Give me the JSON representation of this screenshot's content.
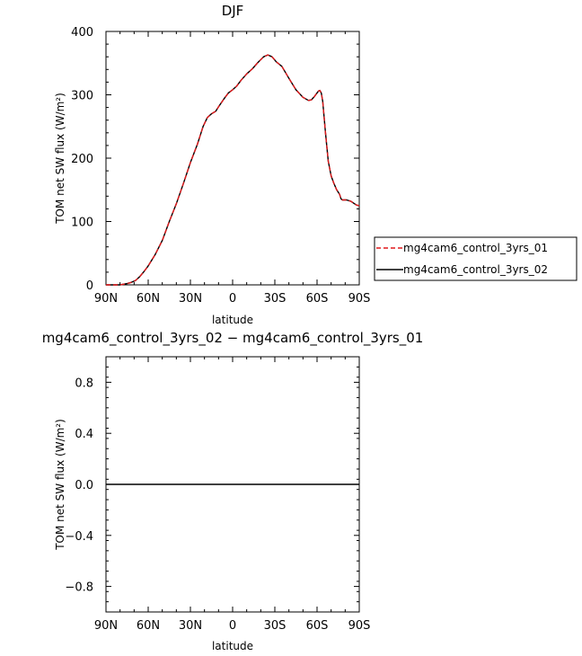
{
  "colors": {
    "series_01": "#e0191b",
    "series_02": "#000000",
    "axis": "#000000"
  },
  "chart_data": [
    {
      "type": "line",
      "title": "DJF",
      "xlabel": "latitude",
      "ylabel": "TOM net SW flux (W/m²)",
      "xlim": [
        90,
        -90
      ],
      "ylim": [
        0,
        400
      ],
      "x_ticks": [
        90,
        60,
        30,
        0,
        -30,
        -60,
        -90
      ],
      "x_tick_labels": [
        "90N",
        "60N",
        "30N",
        "0",
        "30S",
        "60S",
        "90S"
      ],
      "y_ticks": [
        0,
        100,
        200,
        300,
        400
      ],
      "y_tick_labels": [
        "0",
        "100",
        "200",
        "300",
        "400"
      ],
      "grid": false,
      "legend": "right",
      "series": [
        {
          "name": "mg4cam6_control_3yrs_01",
          "style": "dashed",
          "x": [
            90,
            85,
            80,
            75,
            72,
            69,
            66,
            63,
            60,
            55,
            50,
            45,
            40,
            35,
            30,
            25,
            21,
            18,
            15,
            12,
            10,
            6,
            3,
            0,
            -3,
            -6,
            -10,
            -14,
            -18,
            -22,
            -25,
            -28,
            -31,
            -35,
            -40,
            -45,
            -50,
            -54,
            -56,
            -58,
            -60,
            -61,
            -62,
            -63,
            -64,
            -66,
            -68,
            -70,
            -72,
            -74,
            -76,
            -77,
            -78,
            -79,
            -81,
            -84,
            -86,
            -88,
            -90
          ],
          "y": [
            0,
            0,
            0,
            2,
            4,
            7,
            13,
            21,
            30,
            48,
            70,
            100,
            128,
            160,
            193,
            222,
            250,
            264,
            270,
            274,
            281,
            294,
            303,
            308,
            314,
            323,
            333,
            341,
            351,
            360,
            363,
            360,
            352,
            345,
            326,
            308,
            296,
            291,
            292,
            297,
            303,
            306,
            307,
            303,
            290,
            240,
            195,
            172,
            160,
            150,
            143,
            136,
            134,
            134,
            134,
            132,
            129,
            126,
            125
          ]
        },
        {
          "name": "mg4cam6_control_3yrs_02",
          "style": "solid",
          "x": [
            90,
            85,
            80,
            75,
            72,
            69,
            66,
            63,
            60,
            55,
            50,
            45,
            40,
            35,
            30,
            25,
            21,
            18,
            15,
            12,
            10,
            6,
            3,
            0,
            -3,
            -6,
            -10,
            -14,
            -18,
            -22,
            -25,
            -28,
            -31,
            -35,
            -40,
            -45,
            -50,
            -54,
            -56,
            -58,
            -60,
            -61,
            -62,
            -63,
            -64,
            -66,
            -68,
            -70,
            -72,
            -74,
            -76,
            -77,
            -78,
            -79,
            -81,
            -84,
            -86,
            -88,
            -90
          ],
          "y": [
            0,
            0,
            0,
            2,
            4,
            7,
            13,
            21,
            30,
            48,
            70,
            100,
            128,
            160,
            193,
            222,
            250,
            264,
            270,
            274,
            281,
            294,
            303,
            308,
            314,
            323,
            333,
            341,
            351,
            360,
            363,
            360,
            352,
            345,
            326,
            308,
            296,
            291,
            292,
            297,
            303,
            306,
            307,
            303,
            290,
            240,
            195,
            172,
            160,
            150,
            143,
            136,
            134,
            134,
            134,
            132,
            129,
            126,
            125
          ]
        }
      ]
    },
    {
      "type": "line",
      "title": "mg4cam6_control_3yrs_02 − mg4cam6_control_3yrs_01",
      "xlabel": "latitude",
      "ylabel": "TOM net SW flux (W/m²)",
      "xlim": [
        90,
        -90
      ],
      "ylim": [
        -1,
        1
      ],
      "x_ticks": [
        90,
        60,
        30,
        0,
        -30,
        -60,
        -90
      ],
      "x_tick_labels": [
        "90N",
        "60N",
        "30N",
        "0",
        "30S",
        "60S",
        "90S"
      ],
      "y_ticks": [
        0.8,
        0.4,
        0,
        -0.4,
        -0.8
      ],
      "y_tick_labels": [
        "0.8",
        "0.4",
        "0.0",
        "−0.4",
        "−0.8"
      ],
      "grid": false,
      "series": [
        {
          "style": "solid",
          "x": [
            90,
            -90
          ],
          "y": [
            0,
            0
          ]
        }
      ]
    }
  ]
}
